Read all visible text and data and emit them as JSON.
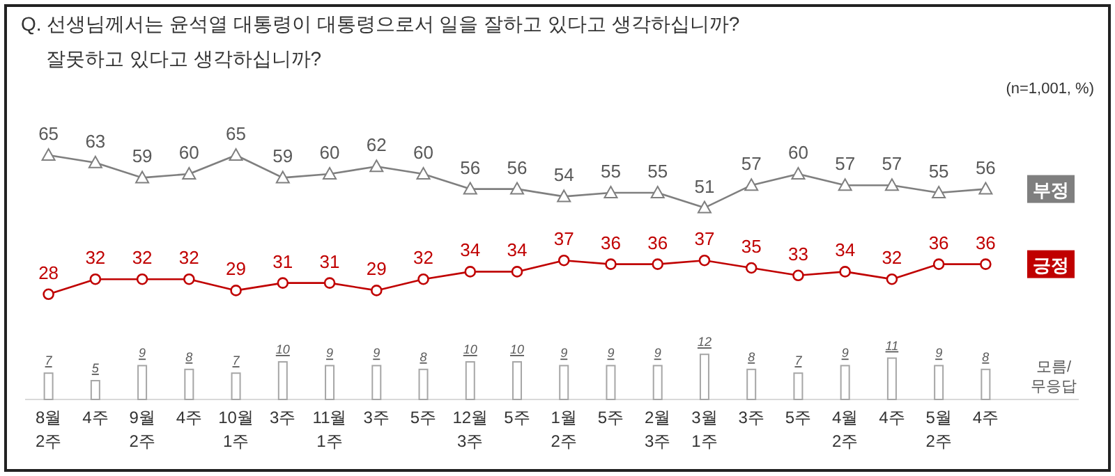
{
  "chart_data": {
    "type": "line",
    "title": "Q. 선생님께서는 윤석열 대통령이 대통령으로서 일을 잘하고 있다고 생각하십니까?\n잘못하고 있다고 생각하십니까?",
    "annotations": [
      "(n=1,001,  %)"
    ],
    "categories": [
      "8월\n2주",
      "4주",
      "9월\n2주",
      "4주",
      "10월\n1주",
      "3주",
      "11월\n1주",
      "3주",
      "5주",
      "12월\n3주",
      "5주",
      "1월\n2주",
      "5주",
      "2월\n3주",
      "3월\n1주",
      "3주",
      "5주",
      "4월\n2주",
      "4주",
      "5월\n2주",
      "4주"
    ],
    "data_labels": true,
    "grid": false,
    "series": [
      {
        "name": "부정",
        "color": "#7f7f7f",
        "marker": "triangle",
        "values": [
          65,
          63,
          59,
          60,
          65,
          59,
          60,
          62,
          60,
          56,
          56,
          54,
          55,
          55,
          51,
          57,
          60,
          57,
          57,
          55,
          56
        ]
      },
      {
        "name": "긍정",
        "color": "#c00000",
        "marker": "circle",
        "values": [
          28,
          32,
          32,
          32,
          29,
          31,
          31,
          29,
          32,
          34,
          34,
          37,
          36,
          36,
          37,
          35,
          33,
          34,
          32,
          36,
          36
        ]
      },
      {
        "name": "모름/\n무응답",
        "type": "bar",
        "color": "#a6a6a6",
        "values": [
          7,
          5,
          9,
          8,
          7,
          10,
          9,
          9,
          8,
          10,
          10,
          9,
          9,
          9,
          12,
          8,
          7,
          9,
          11,
          9,
          8
        ]
      }
    ]
  }
}
